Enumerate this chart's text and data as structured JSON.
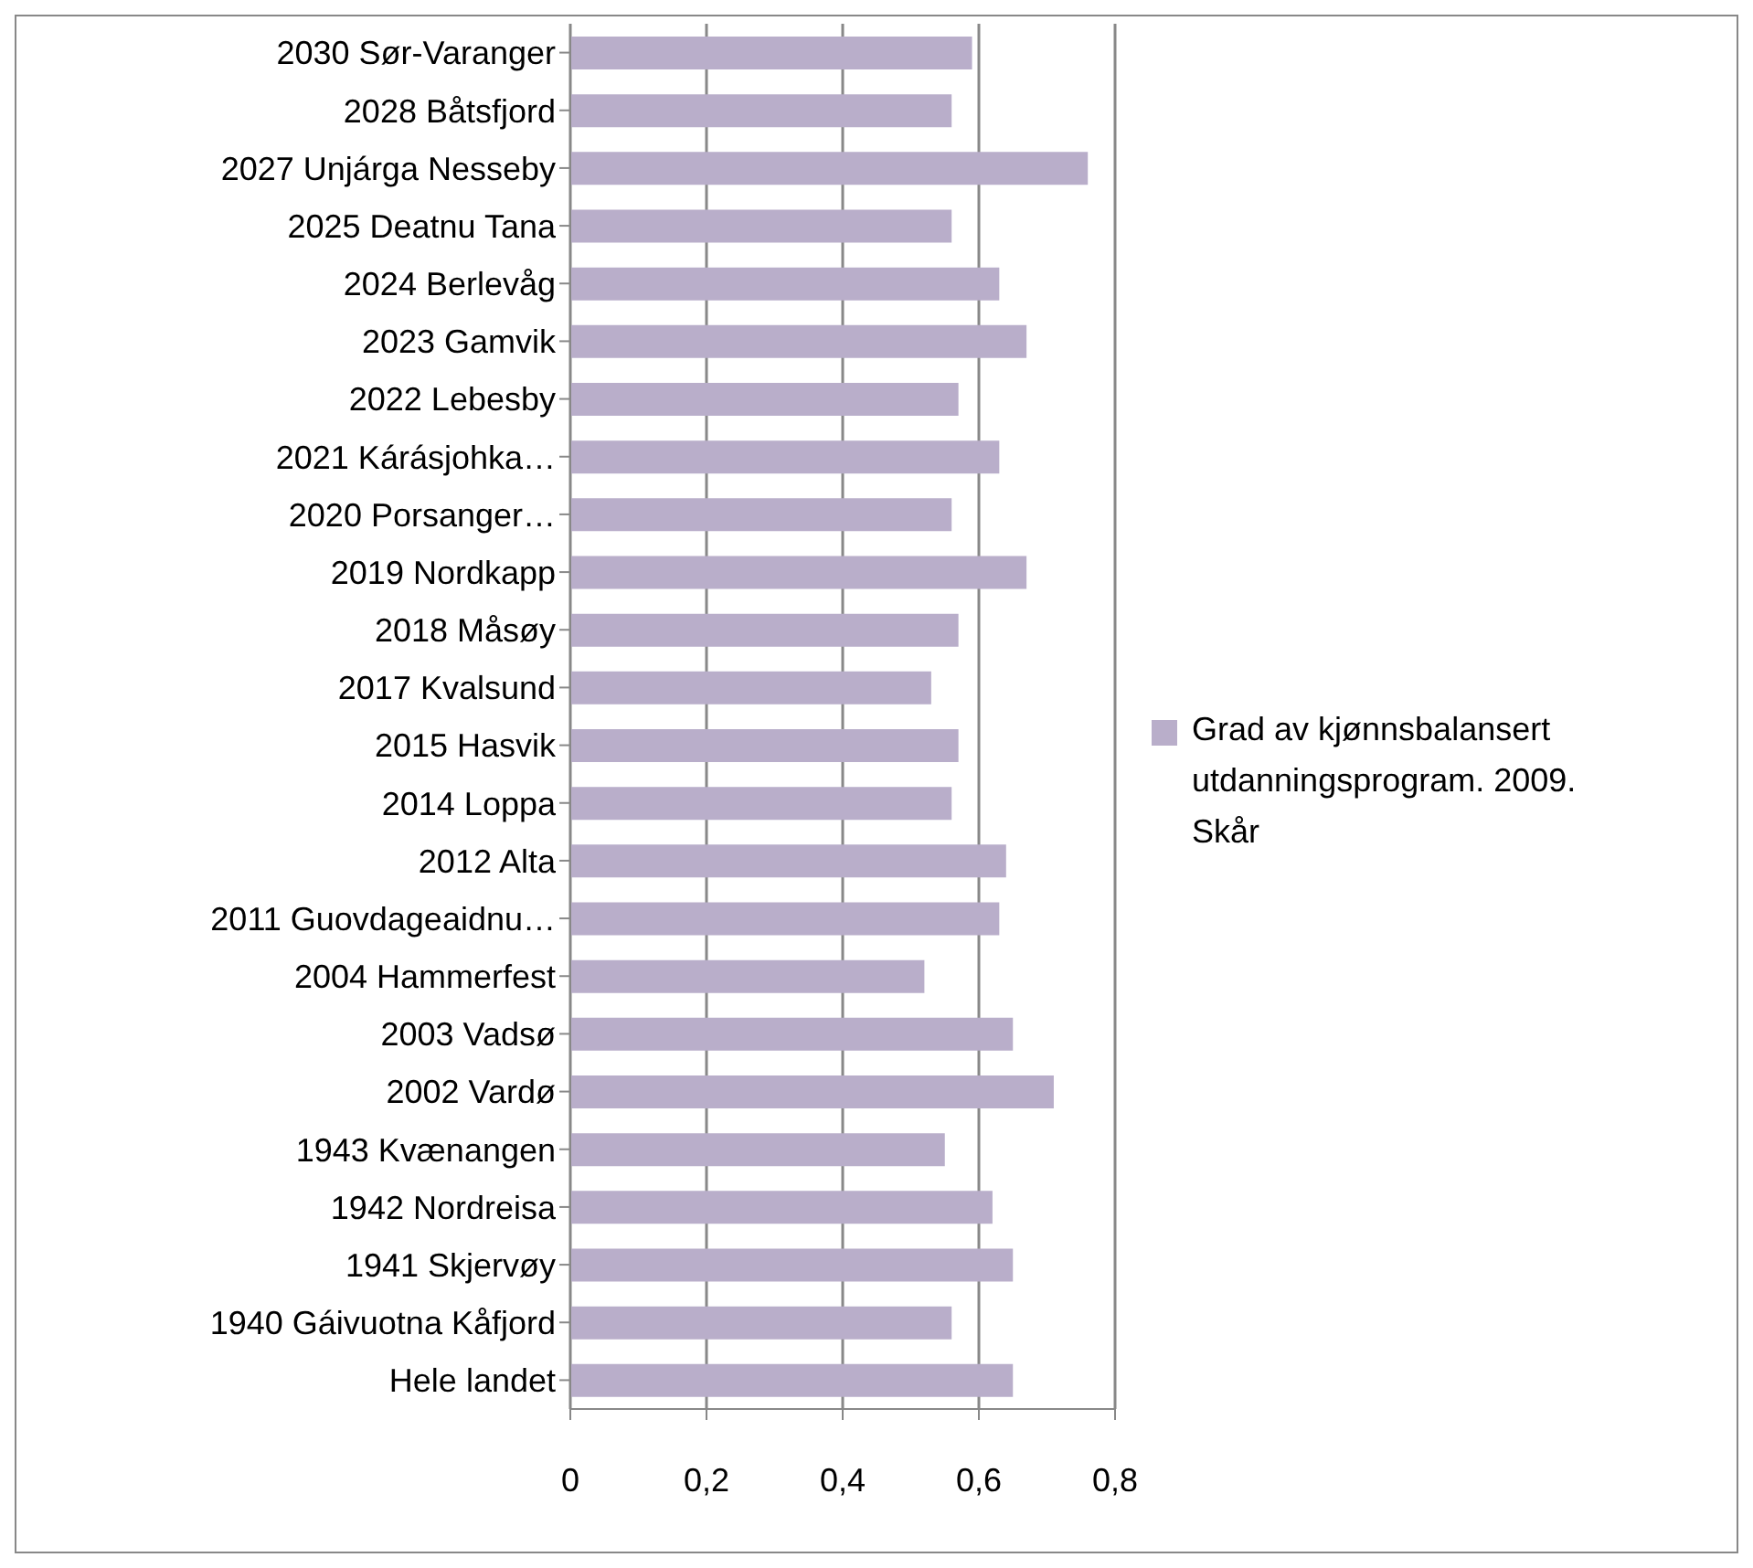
{
  "chart_data": {
    "type": "bar",
    "orientation": "horizontal",
    "categories": [
      "2030 Sør-Varanger",
      "2028 Båtsfjord",
      "2027 Unjárga Nesseby",
      "2025 Deatnu Tana",
      "2024 Berlevåg",
      "2023 Gamvik",
      "2022 Lebesby",
      "2021 Kárásjohka…",
      "2020 Porsanger…",
      "2019 Nordkapp",
      "2018 Måsøy",
      "2017 Kvalsund",
      "2015 Hasvik",
      "2014 Loppa",
      "2012 Alta",
      "2011 Guovdageaidnu…",
      "2004 Hammerfest",
      "2003 Vadsø",
      "2002 Vardø",
      "1943 Kvænangen",
      "1942 Nordreisa",
      "1941 Skjervøy",
      "1940 Gáivuotna Kåfjord",
      "Hele landet"
    ],
    "series": [
      {
        "name": "Grad av kjønnsbalansert utdanningsprogram. 2009. Skår",
        "color": "#b9aeca",
        "values": [
          0.59,
          0.56,
          0.76,
          0.56,
          0.63,
          0.67,
          0.57,
          0.63,
          0.56,
          0.67,
          0.57,
          0.53,
          0.57,
          0.56,
          0.64,
          0.63,
          0.52,
          0.65,
          0.71,
          0.55,
          0.62,
          0.65,
          0.56,
          0.65
        ]
      }
    ],
    "xlim": [
      0,
      0.8
    ],
    "xticks": [
      {
        "value": 0,
        "label": "0"
      },
      {
        "value": 0.2,
        "label": "0,2"
      },
      {
        "value": 0.4,
        "label": "0,4"
      },
      {
        "value": 0.6,
        "label": "0,6"
      },
      {
        "value": 0.8,
        "label": "0,8"
      }
    ],
    "grid": "x",
    "legend": "right"
  }
}
